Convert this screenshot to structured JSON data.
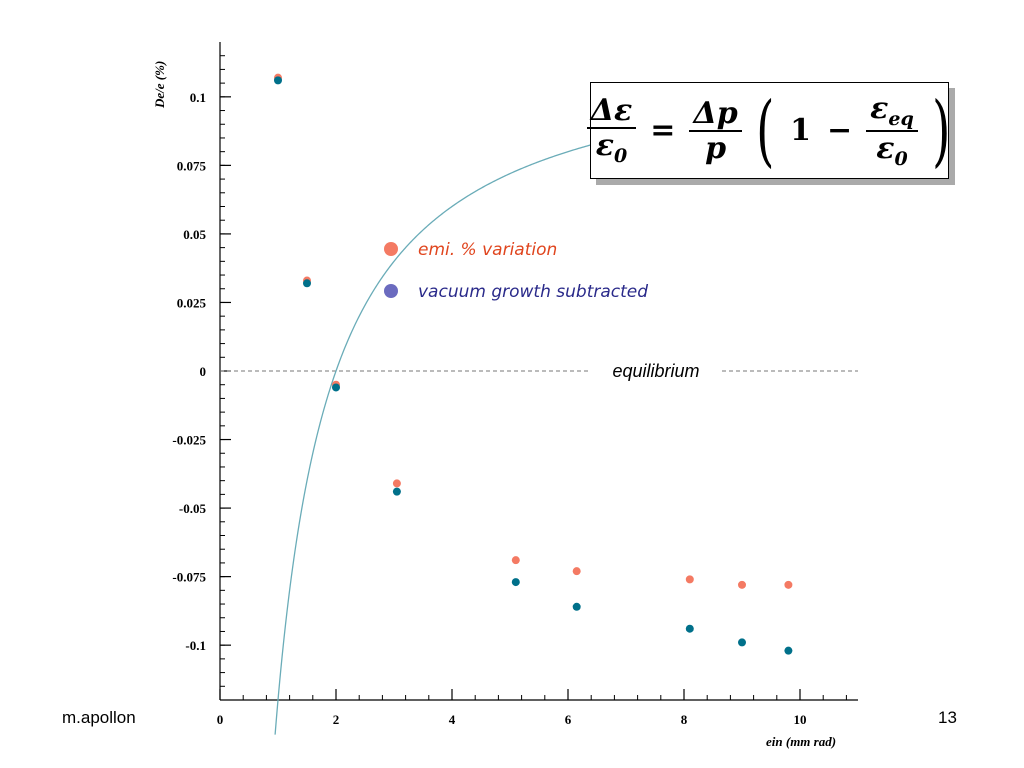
{
  "footer": {
    "author": "m.apollon",
    "page_number": "13"
  },
  "formula": {
    "lhs_num": "Δε",
    "lhs_den": "ε",
    "lhs_den_sub": "0",
    "equals": "=",
    "rhs_num": "Δp",
    "rhs_den": "p",
    "one": "1",
    "minus": "−",
    "inner_num": "ε",
    "inner_num_sub": "eq",
    "inner_den": "ε",
    "inner_den_sub": "0"
  },
  "colors": {
    "variation": "#f47a63",
    "subtracted": "#00708a",
    "legend_subtracted": "#6b6bbf",
    "fit": "#6aacb8"
  },
  "chart_data": {
    "type": "scatter",
    "title": "",
    "xlabel": "ein (mm rad)",
    "ylabel": "De/e (%)",
    "xlim": [
      0,
      11
    ],
    "ylim": [
      -0.12,
      0.12
    ],
    "xticks": [
      0,
      2,
      4,
      6,
      8,
      10
    ],
    "xtick_labels": [
      "0",
      "2",
      "4",
      "6",
      "8",
      "10"
    ],
    "yticks": [
      0.1,
      0.075,
      0.05,
      0.025,
      0,
      -0.025,
      -0.05,
      -0.075,
      -0.1
    ],
    "ytick_labels": [
      "0.1",
      "0.075",
      "0.05",
      "0.025",
      "0",
      "-0.025",
      "-0.05",
      "-0.075",
      "-0.1"
    ],
    "legend": {
      "position": "top-center"
    },
    "grid": false,
    "series": [
      {
        "name": "emi. % variation",
        "x": [
          1.0,
          1.5,
          2.0,
          3.05,
          5.1,
          6.15,
          8.1,
          9.0,
          9.8
        ],
        "y": [
          0.107,
          0.033,
          -0.005,
          -0.041,
          -0.069,
          -0.073,
          -0.076,
          -0.078,
          -0.078
        ]
      },
      {
        "name": "vacuum growth subtracted",
        "x": [
          1.0,
          1.5,
          2.0,
          3.05,
          5.1,
          6.15,
          8.1,
          9.0,
          9.8
        ],
        "y": [
          0.106,
          0.032,
          -0.006,
          -0.044,
          -0.077,
          -0.086,
          -0.094,
          -0.099,
          -0.102
        ]
      }
    ],
    "fit_curve": {
      "eq_emittance": 2.0,
      "dp_over_p": 0.12,
      "x_from": 0.95,
      "x_to": 11
    },
    "reference_line": {
      "y": 0,
      "label": "equilibrium",
      "style": "dashed"
    }
  }
}
